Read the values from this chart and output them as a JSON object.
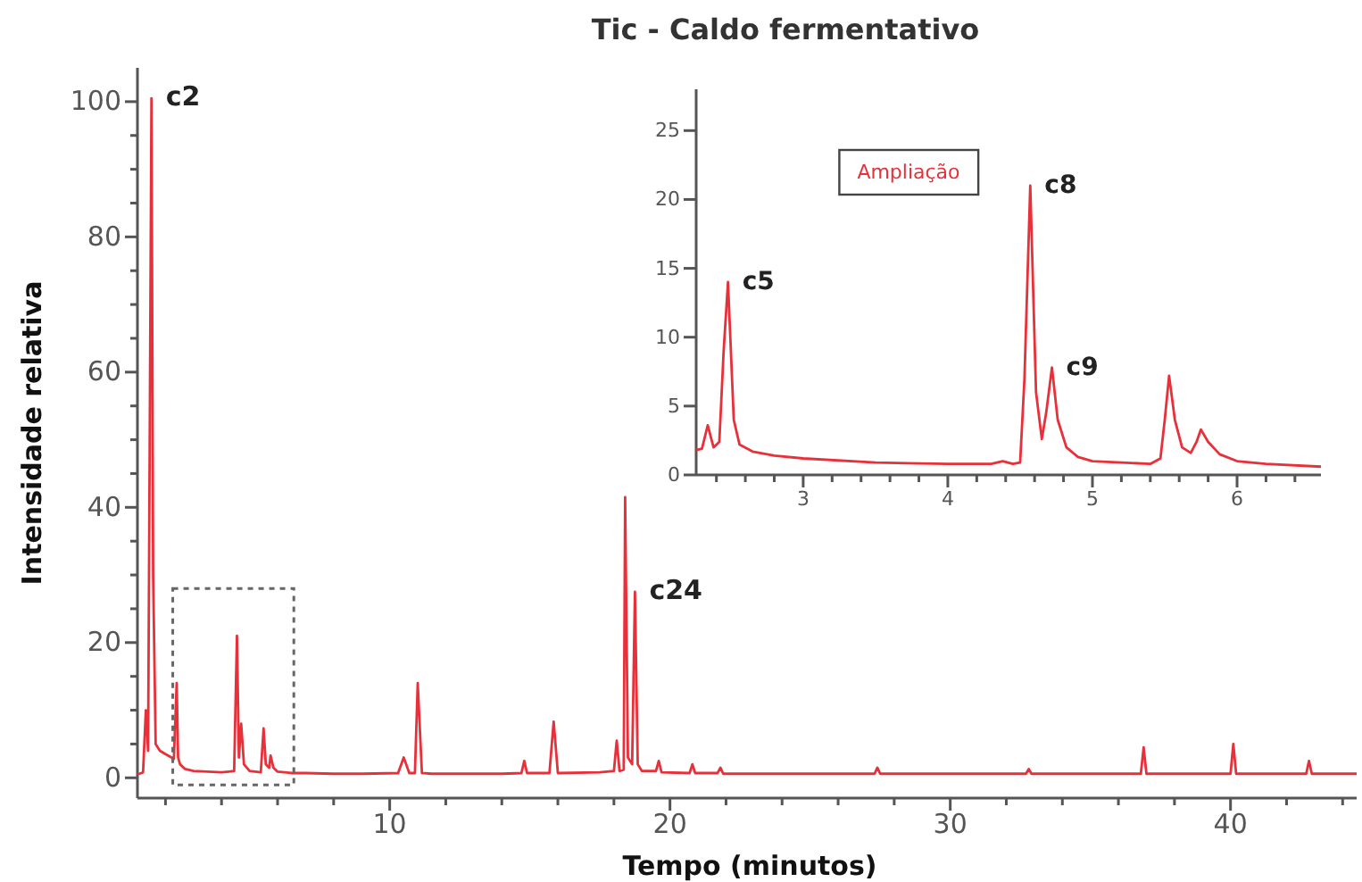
{
  "chart_data": [
    {
      "type": "line",
      "title": "Tic - Caldo fermentativo",
      "xlabel": "Tempo (minutos)",
      "ylabel": "Intensidade relativa",
      "xlim": [
        1,
        44.5
      ],
      "ylim": [
        -3,
        105
      ],
      "xticks": [
        {
          "value": 2,
          "label": null
        },
        {
          "value": 4,
          "label": null
        },
        {
          "value": 6,
          "label": null
        },
        {
          "value": 8,
          "label": null
        },
        10,
        {
          "value": 12,
          "label": null
        },
        {
          "value": 14,
          "label": null
        },
        {
          "value": 16,
          "label": null
        },
        {
          "value": 18,
          "label": null
        },
        20,
        {
          "value": 22,
          "label": null
        },
        {
          "value": 24,
          "label": null
        },
        {
          "value": 26,
          "label": null
        },
        {
          "value": 28,
          "label": null
        },
        30,
        {
          "value": 32,
          "label": null
        },
        {
          "value": 34,
          "label": null
        },
        {
          "value": 36,
          "label": null
        },
        {
          "value": 38,
          "label": null
        },
        40,
        {
          "value": 42,
          "label": null
        },
        {
          "value": 44,
          "label": null
        }
      ],
      "yticks": [
        0,
        {
          "value": 5,
          "label": null
        },
        {
          "value": 10,
          "label": null
        },
        {
          "value": 15,
          "label": null
        },
        20,
        {
          "value": 25,
          "label": null
        },
        {
          "value": 30,
          "label": null
        },
        {
          "value": 35,
          "label": null
        },
        40,
        {
          "value": 45,
          "label": null
        },
        {
          "value": 50,
          "label": null
        },
        {
          "value": 55,
          "label": null
        },
        60,
        {
          "value": 65,
          "label": null
        },
        {
          "value": 70,
          "label": null
        },
        {
          "value": 75,
          "label": null
        },
        80,
        {
          "value": 85,
          "label": null
        },
        {
          "value": 90,
          "label": null
        },
        {
          "value": 95,
          "label": null
        },
        100
      ],
      "grid": false,
      "marker": "none",
      "line_style": "solid",
      "series": [
        {
          "color": "#e8303a",
          "x": [
            1.0,
            1.2,
            1.3,
            1.38,
            1.45,
            1.5,
            1.56,
            1.65,
            1.8,
            2.0,
            2.3,
            2.4,
            2.45,
            2.52,
            2.7,
            3.0,
            3.5,
            4.0,
            4.45,
            4.55,
            4.62,
            4.7,
            4.8,
            5.0,
            5.4,
            5.5,
            5.58,
            5.7,
            5.75,
            5.85,
            6.0,
            6.5,
            7.0,
            8.0,
            9.0,
            10.3,
            10.5,
            10.7,
            10.9,
            11.0,
            11.15,
            11.5,
            12.5,
            14.0,
            14.7,
            14.8,
            14.9,
            15.7,
            15.85,
            16.0,
            17.5,
            18.0,
            18.1,
            18.2,
            18.35,
            18.4,
            18.5,
            18.65,
            18.75,
            18.85,
            19.0,
            19.5,
            19.6,
            19.7,
            20.7,
            20.8,
            20.9,
            21.7,
            21.8,
            21.9,
            24.0,
            27.3,
            27.4,
            27.5,
            30.0,
            32.7,
            32.8,
            32.9,
            36.8,
            36.9,
            37.0,
            38.0,
            40.0,
            40.1,
            40.2,
            42.7,
            42.8,
            42.9,
            44.5
          ],
          "values": [
            0.5,
            0.8,
            10,
            4,
            60,
            100.5,
            30,
            5,
            4,
            3.5,
            2.8,
            14,
            3,
            2,
            1.3,
            1,
            0.9,
            0.8,
            1,
            21,
            3,
            8,
            2,
            1,
            0.8,
            7.3,
            2,
            1.5,
            3.3,
            1.5,
            0.9,
            0.7,
            0.7,
            0.6,
            0.6,
            0.7,
            3,
            0.7,
            0.7,
            14,
            0.7,
            0.6,
            0.6,
            0.6,
            0.7,
            2.5,
            0.7,
            0.7,
            8.3,
            0.7,
            0.8,
            1,
            5.5,
            1,
            1.2,
            41.5,
            3,
            2,
            27.5,
            2,
            1,
            1,
            2.5,
            0.8,
            0.7,
            2,
            0.7,
            0.7,
            1.5,
            0.6,
            0.6,
            0.6,
            1.5,
            0.6,
            0.6,
            0.6,
            1.3,
            0.6,
            0.6,
            4.5,
            0.6,
            0.6,
            0.6,
            5,
            0.6,
            0.6,
            2.5,
            0.6,
            0.6
          ]
        }
      ],
      "annotations": [
        {
          "text": "c2",
          "x": 1.5,
          "y": 100.5
        },
        {
          "text": "c24",
          "x": 18.75,
          "y": 27.5
        }
      ]
    },
    {
      "type": "line",
      "xlim": [
        2.26,
        6.58
      ],
      "ylim": [
        0,
        28
      ],
      "xticks": [
        {
          "value": 2.4,
          "label": null
        },
        {
          "value": 2.6,
          "label": null
        },
        {
          "value": 2.8,
          "label": null
        },
        3,
        {
          "value": 3.2,
          "label": null
        },
        {
          "value": 3.4,
          "label": null
        },
        {
          "value": 3.6,
          "label": null
        },
        {
          "value": 3.8,
          "label": null
        },
        4,
        {
          "value": 4.2,
          "label": null
        },
        {
          "value": 4.4,
          "label": null
        },
        {
          "value": 4.6,
          "label": null
        },
        {
          "value": 4.8,
          "label": null
        },
        5,
        {
          "value": 5.2,
          "label": null
        },
        {
          "value": 5.4,
          "label": null
        },
        {
          "value": 5.6,
          "label": null
        },
        {
          "value": 5.8,
          "label": null
        },
        6,
        {
          "value": 6.2,
          "label": null
        },
        {
          "value": 6.4,
          "label": null
        }
      ],
      "yticks": [
        0,
        5,
        10,
        15,
        20,
        25
      ],
      "grid": false,
      "marker": "none",
      "line_style": "solid",
      "series": [
        {
          "color": "#e8303a",
          "x": [
            2.26,
            2.3,
            2.34,
            2.38,
            2.42,
            2.45,
            2.48,
            2.52,
            2.56,
            2.65,
            2.8,
            3.0,
            3.5,
            4.0,
            4.3,
            4.38,
            4.45,
            4.5,
            4.53,
            4.57,
            4.61,
            4.65,
            4.68,
            4.72,
            4.76,
            4.82,
            4.9,
            5.0,
            5.2,
            5.4,
            5.47,
            5.5,
            5.53,
            5.57,
            5.62,
            5.68,
            5.72,
            5.75,
            5.8,
            5.88,
            6.0,
            6.2,
            6.58
          ],
          "values": [
            1.8,
            1.9,
            3.6,
            2.0,
            2.4,
            9,
            14,
            4,
            2.2,
            1.7,
            1.4,
            1.2,
            0.9,
            0.8,
            0.8,
            1.0,
            0.8,
            0.9,
            7,
            21,
            6,
            2.6,
            4.5,
            7.8,
            4,
            2,
            1.3,
            1.0,
            0.9,
            0.8,
            1.2,
            4,
            7.2,
            4,
            2,
            1.6,
            2.4,
            3.3,
            2.4,
            1.5,
            1.0,
            0.8,
            0.6
          ]
        }
      ],
      "annotations": [
        {
          "text": "c5",
          "x": 2.48,
          "y": 14
        },
        {
          "text": "c8",
          "x": 4.57,
          "y": 21
        },
        {
          "text": "c9",
          "x": 4.72,
          "y": 7.8
        },
        "Ampliação"
      ]
    }
  ]
}
